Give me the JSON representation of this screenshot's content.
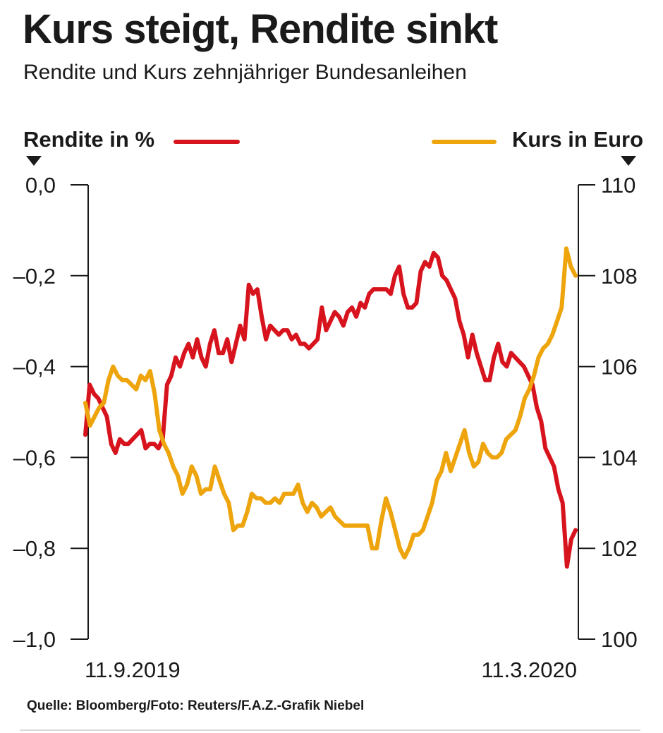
{
  "title": "Kurs steigt, Rendite sinkt",
  "subtitle": "Rendite und Kurs zehnjähriger Bundesanleihen",
  "legend": {
    "left_label": "Rendite in %",
    "right_label": "Kurs in Euro"
  },
  "source": "Quelle: Bloomberg/Foto: Reuters/F.A.Z.-Grafik Niebel",
  "colors": {
    "rendite": "#d7141e",
    "kurs": "#eea50d",
    "axis": "#1a1a1a"
  },
  "chart_data": {
    "type": "line",
    "title": "Kurs steigt, Rendite sinkt",
    "x_start_label": "11.9.2019",
    "x_end_label": "11.3.2020",
    "left_axis": {
      "label": "Rendite in %",
      "range": [
        -1.0,
        0.0
      ],
      "ticks": [
        0.0,
        -0.2,
        -0.4,
        -0.6,
        -0.8,
        -1.0
      ],
      "tick_labels": [
        "0,0",
        "–0,2",
        "–0,4",
        "–0,6",
        "–0,8",
        "–1,0"
      ]
    },
    "right_axis": {
      "label": "Kurs in Euro",
      "range": [
        100,
        110
      ],
      "ticks": [
        110,
        108,
        106,
        104,
        102,
        100
      ],
      "tick_labels": [
        "110",
        "108",
        "106",
        "104",
        "102",
        "100"
      ]
    },
    "series": [
      {
        "name": "Rendite in %",
        "axis": "left",
        "values": [
          -0.55,
          -0.44,
          -0.46,
          -0.47,
          -0.49,
          -0.51,
          -0.57,
          -0.59,
          -0.56,
          -0.57,
          -0.57,
          -0.56,
          -0.55,
          -0.54,
          -0.58,
          -0.57,
          -0.57,
          -0.58,
          -0.56,
          -0.44,
          -0.42,
          -0.38,
          -0.4,
          -0.37,
          -0.35,
          -0.38,
          -0.34,
          -0.38,
          -0.4,
          -0.35,
          -0.32,
          -0.37,
          -0.37,
          -0.34,
          -0.39,
          -0.35,
          -0.31,
          -0.34,
          -0.22,
          -0.24,
          -0.23,
          -0.29,
          -0.34,
          -0.31,
          -0.32,
          -0.33,
          -0.32,
          -0.32,
          -0.34,
          -0.33,
          -0.35,
          -0.35,
          -0.36,
          -0.35,
          -0.34,
          -0.27,
          -0.32,
          -0.3,
          -0.28,
          -0.29,
          -0.31,
          -0.28,
          -0.27,
          -0.29,
          -0.26,
          -0.27,
          -0.24,
          -0.23,
          -0.23,
          -0.23,
          -0.23,
          -0.24,
          -0.2,
          -0.18,
          -0.24,
          -0.27,
          -0.27,
          -0.26,
          -0.19,
          -0.17,
          -0.18,
          -0.15,
          -0.16,
          -0.2,
          -0.21,
          -0.23,
          -0.25,
          -0.3,
          -0.33,
          -0.38,
          -0.33,
          -0.37,
          -0.4,
          -0.43,
          -0.43,
          -0.38,
          -0.35,
          -0.39,
          -0.4,
          -0.37,
          -0.38,
          -0.39,
          -0.4,
          -0.42,
          -0.44,
          -0.49,
          -0.52,
          -0.58,
          -0.6,
          -0.62,
          -0.67,
          -0.7,
          -0.84,
          -0.78,
          -0.76
        ]
      },
      {
        "name": "Kurs in Euro",
        "axis": "right",
        "values": [
          105.2,
          104.7,
          104.9,
          105.1,
          105.2,
          105.7,
          106.0,
          105.8,
          105.7,
          105.7,
          105.6,
          105.5,
          105.8,
          105.7,
          105.9,
          105.4,
          104.6,
          104.3,
          104.1,
          103.8,
          103.6,
          103.2,
          103.4,
          103.8,
          103.6,
          103.2,
          103.3,
          103.3,
          103.8,
          103.5,
          103.2,
          103.0,
          102.4,
          102.5,
          102.5,
          102.8,
          103.2,
          103.1,
          103.1,
          103.0,
          103.0,
          103.1,
          103.0,
          103.2,
          103.2,
          103.2,
          103.4,
          103.0,
          102.8,
          103.0,
          102.9,
          102.7,
          102.8,
          102.9,
          102.7,
          102.6,
          102.5,
          102.5,
          102.5,
          102.5,
          102.5,
          102.5,
          102.0,
          102.0,
          102.6,
          103.1,
          102.8,
          102.4,
          102.0,
          101.8,
          102.0,
          102.3,
          102.3,
          102.4,
          102.7,
          103.0,
          103.5,
          103.7,
          104.1,
          103.7,
          104.0,
          104.3,
          104.6,
          104.1,
          103.8,
          103.9,
          104.3,
          104.1,
          104.0,
          104.0,
          104.1,
          104.4,
          104.5,
          104.6,
          104.9,
          105.3,
          105.5,
          105.8,
          106.2,
          106.4,
          106.5,
          106.7,
          107.0,
          107.3,
          108.6,
          108.2,
          108.0
        ]
      }
    ]
  }
}
